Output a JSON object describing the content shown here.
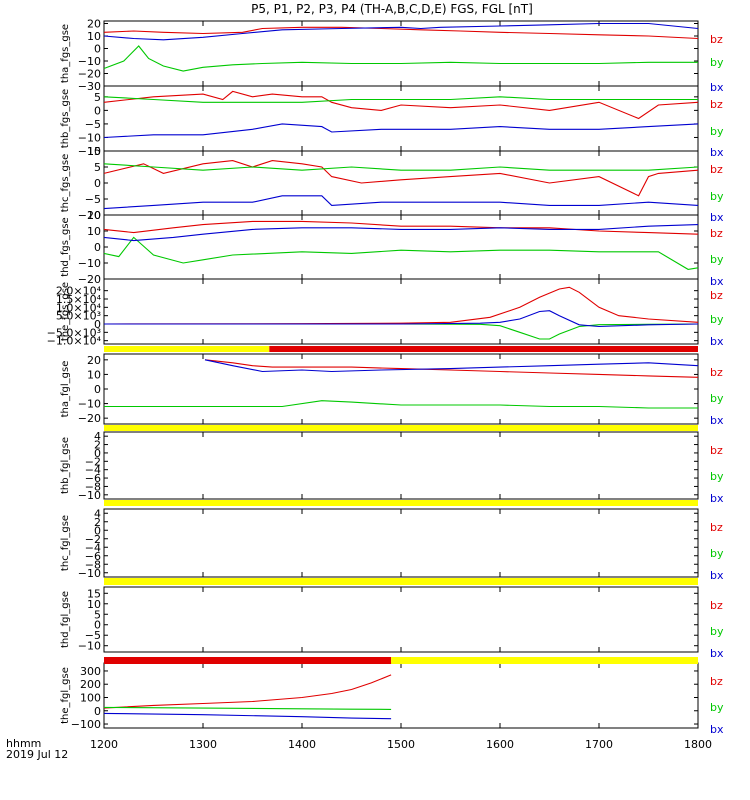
{
  "title": "P5, P1, P2, P3, P4 (TH-A,B,C,D,E) FGS, FGL [nT]",
  "x_axis": {
    "ticks": [
      "1200",
      "1300",
      "1400",
      "1500",
      "1600",
      "1700",
      "1800"
    ],
    "tick_values": [
      1200,
      1300,
      1400,
      1500,
      1600,
      1700,
      1800
    ],
    "corner_label_1": "hhmm",
    "corner_label_2": "2019 Jul 12"
  },
  "colors": {
    "bz": "#e00000",
    "by": "#00c800",
    "bx": "#0000d0",
    "bar_yellow": "#ffff00",
    "bar_red": "#e00000"
  },
  "chart_data": [
    {
      "type": "line",
      "ylabel": "tha_fgs_gse",
      "ylim": [
        -30,
        22
      ],
      "ytick_labels": [
        "20",
        "10",
        "0",
        "−10",
        "−20",
        "−30"
      ],
      "ytick_values": [
        20,
        10,
        0,
        -10,
        -20,
        -30
      ],
      "legend": [
        "bz",
        "by",
        "bx"
      ],
      "series": [
        {
          "name": "bz",
          "x": [
            1200,
            1230,
            1260,
            1300,
            1340,
            1360,
            1400,
            1440,
            1480,
            1520,
            1560,
            1600,
            1650,
            1700,
            1750,
            1800
          ],
          "y": [
            13,
            14,
            13,
            12,
            13,
            16,
            17,
            17,
            16,
            15,
            14,
            13,
            12,
            11,
            10,
            8
          ]
        },
        {
          "name": "by",
          "x": [
            1200,
            1220,
            1235,
            1245,
            1260,
            1280,
            1300,
            1330,
            1360,
            1400,
            1450,
            1500,
            1550,
            1600,
            1650,
            1700,
            1750,
            1800
          ],
          "y": [
            -16,
            -10,
            2,
            -8,
            -14,
            -18,
            -15,
            -13,
            -12,
            -11,
            -12,
            -12,
            -11,
            -12,
            -12,
            -12,
            -11,
            -11
          ]
        },
        {
          "name": "bx",
          "x": [
            1200,
            1230,
            1260,
            1300,
            1340,
            1380,
            1440,
            1500,
            1520,
            1540,
            1600,
            1650,
            1700,
            1750,
            1800
          ],
          "y": [
            10,
            8,
            7,
            9,
            12,
            15,
            16,
            17,
            16,
            17,
            18,
            19,
            20,
            20,
            16
          ]
        }
      ]
    },
    {
      "type": "line",
      "ylabel": "thb_fgs_gse",
      "ylim": [
        -15,
        9
      ],
      "ytick_labels": [
        "5",
        "0",
        "−5",
        "−10",
        "−15"
      ],
      "ytick_values": [
        5,
        0,
        -5,
        -10,
        -15
      ],
      "legend": [
        "bz",
        "by",
        "bx"
      ],
      "series": [
        {
          "name": "bz",
          "x": [
            1200,
            1250,
            1300,
            1320,
            1330,
            1350,
            1370,
            1400,
            1420,
            1430,
            1450,
            1480,
            1500,
            1550,
            1600,
            1650,
            1700,
            1740,
            1760,
            1800
          ],
          "y": [
            3,
            5,
            6,
            4,
            7,
            5,
            6,
            5,
            5,
            3,
            1,
            0,
            2,
            1,
            2,
            0,
            3,
            -3,
            2,
            3
          ]
        },
        {
          "name": "by",
          "x": [
            1200,
            1250,
            1300,
            1350,
            1400,
            1450,
            1500,
            1550,
            1600,
            1650,
            1700,
            1750,
            1800
          ],
          "y": [
            5,
            4,
            3,
            3,
            3,
            4,
            4,
            4,
            5,
            4,
            4,
            4,
            4
          ]
        },
        {
          "name": "bx",
          "x": [
            1200,
            1250,
            1300,
            1350,
            1380,
            1420,
            1430,
            1480,
            1550,
            1600,
            1650,
            1700,
            1750,
            1800
          ],
          "y": [
            -10,
            -9,
            -9,
            -7,
            -5,
            -6,
            -8,
            -7,
            -7,
            -6,
            -7,
            -7,
            -6,
            -5
          ]
        }
      ]
    },
    {
      "type": "line",
      "ylabel": "thc_fgs_gse",
      "ylim": [
        -10,
        10
      ],
      "ytick_labels": [
        "10",
        "5",
        "0",
        "−5",
        "−10"
      ],
      "ytick_values": [
        10,
        5,
        0,
        -5,
        -10
      ],
      "legend": [
        "bz",
        "by",
        "bx"
      ],
      "series": [
        {
          "name": "bz",
          "x": [
            1200,
            1240,
            1260,
            1300,
            1330,
            1350,
            1370,
            1400,
            1420,
            1430,
            1460,
            1500,
            1550,
            1600,
            1650,
            1700,
            1740,
            1750,
            1760,
            1800
          ],
          "y": [
            3,
            6,
            3,
            6,
            7,
            5,
            7,
            6,
            5,
            2,
            0,
            1,
            2,
            3,
            0,
            2,
            -4,
            2,
            3,
            4
          ]
        },
        {
          "name": "by",
          "x": [
            1200,
            1250,
            1300,
            1350,
            1400,
            1450,
            1500,
            1550,
            1600,
            1650,
            1700,
            1750,
            1800
          ],
          "y": [
            6,
            5,
            4,
            5,
            4,
            5,
            4,
            4,
            5,
            4,
            4,
            4,
            5
          ]
        },
        {
          "name": "bx",
          "x": [
            1200,
            1250,
            1300,
            1350,
            1380,
            1420,
            1430,
            1480,
            1550,
            1600,
            1650,
            1700,
            1750,
            1800
          ],
          "y": [
            -8,
            -7,
            -6,
            -6,
            -4,
            -4,
            -7,
            -6,
            -6,
            -6,
            -7,
            -7,
            -6,
            -7
          ]
        }
      ]
    },
    {
      "type": "line",
      "ylabel": "thd_fgs_gse",
      "ylim": [
        -20,
        20
      ],
      "ytick_labels": [
        "20",
        "10",
        "0",
        "−10",
        "−20"
      ],
      "ytick_values": [
        20,
        10,
        0,
        -10,
        -20
      ],
      "legend": [
        "bz",
        "by",
        "bx"
      ],
      "series": [
        {
          "name": "bz",
          "x": [
            1200,
            1230,
            1270,
            1300,
            1350,
            1400,
            1450,
            1500,
            1550,
            1600,
            1650,
            1700,
            1750,
            1800
          ],
          "y": [
            11,
            9,
            12,
            14,
            16,
            16,
            15,
            13,
            13,
            12,
            12,
            10,
            9,
            8
          ]
        },
        {
          "name": "by",
          "x": [
            1200,
            1215,
            1230,
            1250,
            1280,
            1300,
            1330,
            1400,
            1450,
            1500,
            1550,
            1600,
            1650,
            1700,
            1760,
            1790,
            1800
          ],
          "y": [
            -4,
            -6,
            6,
            -5,
            -10,
            -8,
            -5,
            -3,
            -4,
            -2,
            -3,
            -2,
            -2,
            -3,
            -3,
            -14,
            -13
          ]
        },
        {
          "name": "bx",
          "x": [
            1200,
            1230,
            1270,
            1300,
            1350,
            1400,
            1450,
            1500,
            1550,
            1600,
            1650,
            1700,
            1750,
            1800
          ],
          "y": [
            6,
            4,
            6,
            8,
            11,
            12,
            12,
            11,
            11,
            12,
            11,
            11,
            13,
            14
          ]
        }
      ]
    },
    {
      "type": "line",
      "ylabel": "the_fgs_gse",
      "ylim": [
        -12000,
        27000
      ],
      "ytick_labels": [
        "2.0×10⁴",
        "1.5×10⁴",
        "1.0×10⁴",
        "5.0×10³",
        "0",
        "−5.0×10³",
        "−1.0×10⁴"
      ],
      "ytick_values": [
        20000,
        15000,
        10000,
        5000,
        0,
        -5000,
        -10000
      ],
      "legend": [
        "bz",
        "by",
        "bx"
      ],
      "series": [
        {
          "name": "bz",
          "x": [
            1200,
            1400,
            1500,
            1550,
            1590,
            1620,
            1640,
            1660,
            1670,
            1680,
            1700,
            1720,
            1750,
            1800
          ],
          "y": [
            0,
            200,
            500,
            1000,
            4000,
            10000,
            16000,
            21000,
            22000,
            19000,
            10000,
            5000,
            3000,
            1000
          ]
        },
        {
          "name": "by",
          "x": [
            1200,
            1500,
            1580,
            1600,
            1620,
            1640,
            1650,
            1660,
            1680,
            1700,
            1750,
            1800
          ],
          "y": [
            0,
            0,
            -200,
            -1000,
            -5000,
            -9000,
            -9000,
            -6000,
            -1500,
            -400,
            -200,
            0
          ]
        },
        {
          "name": "bx",
          "x": [
            1200,
            1500,
            1580,
            1600,
            1620,
            1640,
            1650,
            1660,
            1680,
            1700,
            1750,
            1800
          ],
          "y": [
            0,
            0,
            500,
            1000,
            3000,
            7500,
            8000,
            5000,
            -500,
            -1500,
            -500,
            0
          ]
        }
      ]
    },
    {
      "type": "line",
      "ylabel": "tha_fgl_gse",
      "ylim": [
        -24,
        24
      ],
      "ytick_labels": [
        "20",
        "10",
        "0",
        "−10",
        "−20"
      ],
      "ytick_values": [
        20,
        10,
        0,
        -10,
        -20
      ],
      "legend": [
        "bz",
        "by",
        "bx"
      ],
      "series": [
        {
          "name": "bz",
          "x": [
            1302,
            1330,
            1350,
            1370,
            1400,
            1450,
            1500,
            1550,
            1600,
            1650,
            1700,
            1750,
            1800
          ],
          "y": [
            20,
            18,
            16,
            15,
            15,
            15,
            14,
            13,
            12,
            11,
            10,
            9,
            8
          ]
        },
        {
          "name": "by",
          "x": [
            1200,
            1250,
            1300,
            1368,
            1380,
            1420,
            1450,
            1500,
            1550,
            1600,
            1650,
            1700,
            1750,
            1800
          ],
          "y": [
            -12,
            -12,
            -12,
            -12,
            -12,
            -8,
            -9,
            -11,
            -11,
            -11,
            -12,
            -12,
            -13,
            -13
          ]
        },
        {
          "name": "bx",
          "x": [
            1302,
            1330,
            1360,
            1400,
            1430,
            1480,
            1550,
            1600,
            1650,
            1700,
            1750,
            1800
          ],
          "y": [
            20,
            16,
            12,
            13,
            12,
            13,
            14,
            15,
            16,
            17,
            18,
            16
          ]
        }
      ]
    },
    {
      "type": "line",
      "ylabel": "thb_fgl_gse",
      "ylim": [
        -11,
        5
      ],
      "ytick_labels": [
        "4",
        "2",
        "0",
        "−2",
        "−4",
        "−6",
        "−8",
        "−10"
      ],
      "ytick_values": [
        4,
        2,
        0,
        -2,
        -4,
        -6,
        -8,
        -10
      ],
      "legend": [
        "bz",
        "by",
        "bx"
      ],
      "series": []
    },
    {
      "type": "line",
      "ylabel": "thc_fgl_gse",
      "ylim": [
        -11,
        5
      ],
      "ytick_labels": [
        "4",
        "2",
        "0",
        "−2",
        "−4",
        "−6",
        "−8",
        "−10"
      ],
      "ytick_values": [
        4,
        2,
        0,
        -2,
        -4,
        -6,
        -8,
        -10
      ],
      "legend": [
        "bz",
        "by",
        "bx"
      ],
      "series": []
    },
    {
      "type": "line",
      "ylabel": "thd_fgl_gse",
      "ylim": [
        -13,
        18
      ],
      "ytick_labels": [
        "15",
        "10",
        "5",
        "0",
        "−5",
        "−10"
      ],
      "ytick_values": [
        15,
        10,
        5,
        0,
        -5,
        -10
      ],
      "legend": [
        "bz",
        "by",
        "bx"
      ],
      "series": []
    },
    {
      "type": "line",
      "ylabel": "the_fgl_gse",
      "ylim": [
        -130,
        360
      ],
      "ytick_labels": [
        "300",
        "200",
        "100",
        "0",
        "−100"
      ],
      "ytick_values": [
        300,
        200,
        100,
        0,
        -100
      ],
      "legend": [
        "bz",
        "by",
        "bx"
      ],
      "series": [
        {
          "name": "bz",
          "x": [
            1200,
            1250,
            1300,
            1350,
            1400,
            1430,
            1450,
            1470,
            1490
          ],
          "y": [
            20,
            40,
            55,
            70,
            100,
            130,
            160,
            210,
            270
          ]
        },
        {
          "name": "by",
          "x": [
            1200,
            1300,
            1400,
            1450,
            1490
          ],
          "y": [
            25,
            20,
            15,
            12,
            10
          ]
        },
        {
          "name": "bx",
          "x": [
            1200,
            1300,
            1400,
            1450,
            1490
          ],
          "y": [
            -20,
            -30,
            -45,
            -55,
            -60
          ]
        }
      ]
    }
  ],
  "mode_bars": [
    {
      "after_panel": 4,
      "segments": [
        {
          "color": "bar_yellow",
          "x0": 1200,
          "x1": 1367
        },
        {
          "color": "bar_red",
          "x0": 1367,
          "x1": 1800
        }
      ]
    },
    {
      "after_panel": 5,
      "segments": [
        {
          "color": "bar_yellow",
          "x0": 1200,
          "x1": 1800
        }
      ]
    },
    {
      "after_panel": 6,
      "segments": [
        {
          "color": "bar_yellow",
          "x0": 1200,
          "x1": 1800
        }
      ]
    },
    {
      "after_panel": 7,
      "segments": [
        {
          "color": "bar_yellow",
          "x0": 1200,
          "x1": 1800
        }
      ]
    },
    {
      "after_panel": 8,
      "segments": [
        {
          "color": "bar_red",
          "x0": 1200,
          "x1": 1490
        },
        {
          "color": "bar_yellow",
          "x0": 1490,
          "x1": 1800
        }
      ]
    }
  ]
}
